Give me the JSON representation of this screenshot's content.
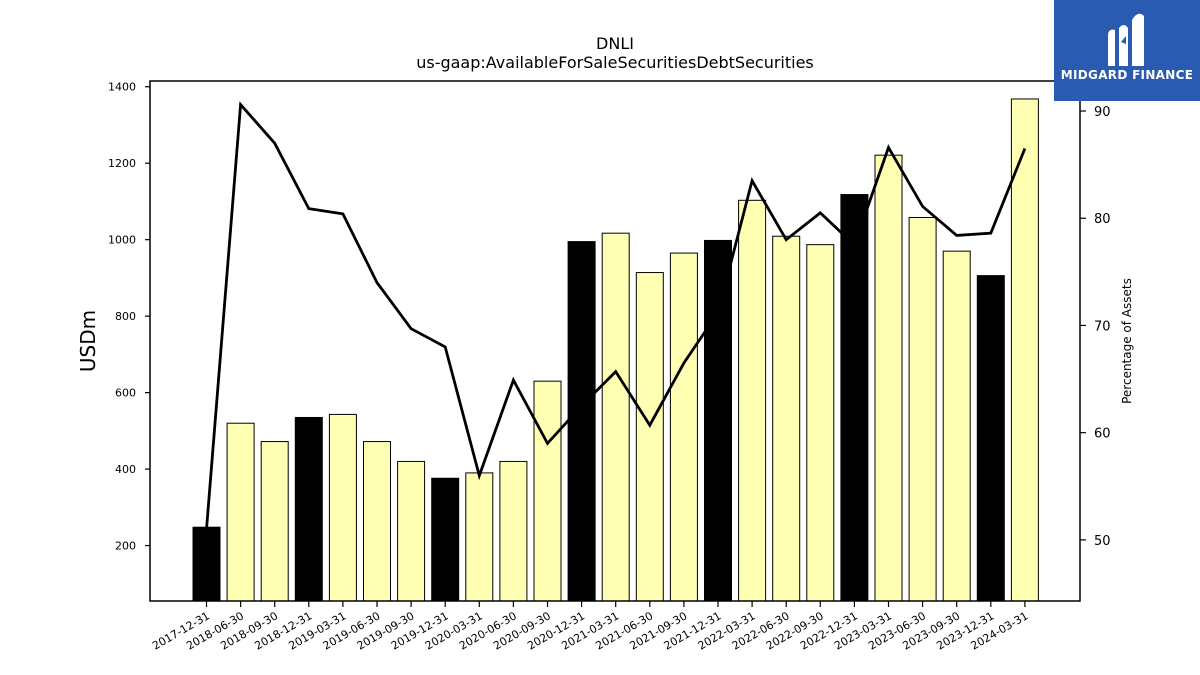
{
  "brand": {
    "logo_icon": "midgard-logo-icon",
    "name": "MIDGARD FINANCE",
    "bg_color": "#2b5bb0"
  },
  "chart_data": {
    "type": "bar",
    "title": "DNLI",
    "subtitle": "us-gaap:AvailableForSaleSecuritiesDebtSecurities",
    "ylabel": "USDm",
    "y2label": "Percentage of Assets",
    "ylim": [
      55,
      1415
    ],
    "y2lim": [
      44.3,
      92.8
    ],
    "yticks": [
      200,
      400,
      600,
      800,
      1000,
      1200,
      1400
    ],
    "y2ticks": [
      50,
      60,
      70,
      80,
      90
    ],
    "categories": [
      "2017-12-31",
      "2018-06-30",
      "2018-09-30",
      "2018-12-31",
      "2019-03-31",
      "2019-06-30",
      "2019-09-30",
      "2019-12-31",
      "2020-03-31",
      "2020-06-30",
      "2020-09-30",
      "2020-12-31",
      "2021-03-31",
      "2021-06-30",
      "2021-09-30",
      "2021-12-31",
      "2022-03-31",
      "2022-06-30",
      "2022-09-30",
      "2022-12-31",
      "2023-03-31",
      "2023-06-30",
      "2023-09-30",
      "2023-12-31",
      "2024-03-31"
    ],
    "series": [
      {
        "type": "bar",
        "axis": "left",
        "values": [
          248,
          520,
          472,
          535,
          543,
          472,
          420,
          376,
          390,
          420,
          630,
          995,
          1017,
          914,
          965,
          998,
          1103,
          1009,
          987,
          1118,
          1221,
          1058,
          970,
          906,
          1368
        ],
        "colors": [
          "#000000",
          "#ffffb3",
          "#ffffb3",
          "#000000",
          "#ffffb3",
          "#ffffb3",
          "#ffffb3",
          "#000000",
          "#ffffb3",
          "#ffffb3",
          "#ffffb3",
          "#000000",
          "#ffffb3",
          "#ffffb3",
          "#ffffb3",
          "#000000",
          "#ffffb3",
          "#ffffb3",
          "#ffffb3",
          "#000000",
          "#ffffb3",
          "#ffffb3",
          "#ffffb3",
          "#000000",
          "#ffffb3"
        ]
      },
      {
        "type": "line",
        "axis": "right",
        "color": "#000000",
        "values": [
          51,
          90.6,
          87,
          80.9,
          80.4,
          74,
          69.7,
          68,
          56,
          64.9,
          59,
          62.5,
          65.7,
          60.7,
          66.5,
          71.2,
          83.5,
          78,
          80.5,
          77.5,
          86.6,
          81.1,
          78.4,
          78.6,
          86.5
        ]
      }
    ],
    "grid": false,
    "legend": "none"
  }
}
